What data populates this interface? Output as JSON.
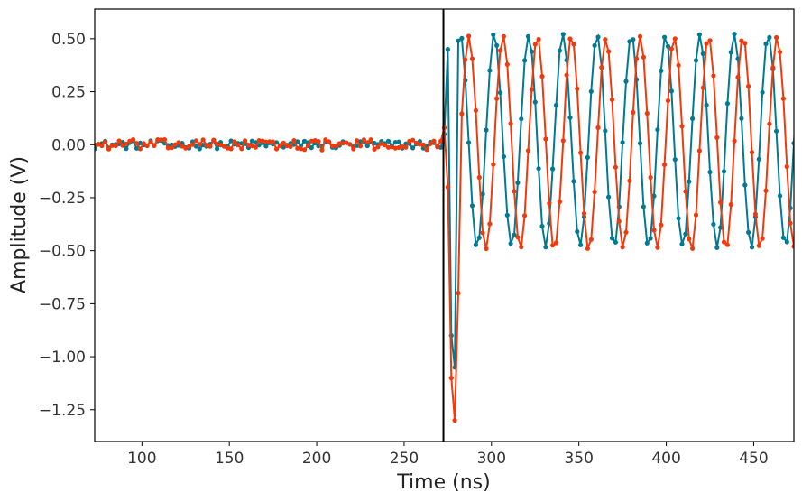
{
  "chart_data": {
    "type": "line",
    "title": "",
    "xlabel": "Time (ns)",
    "ylabel": "Amplitude (V)",
    "xlim": [
      73,
      473
    ],
    "ylim": [
      -1.4,
      0.64
    ],
    "xticks": [
      100,
      150,
      200,
      250,
      300,
      350,
      400,
      450
    ],
    "xtick_labels": [
      "100",
      "150",
      "200",
      "250",
      "300",
      "350",
      "400",
      "450"
    ],
    "yticks": [
      0.5,
      0.25,
      0.0,
      -0.25,
      -0.5,
      -0.75,
      -1.0,
      -1.25
    ],
    "ytick_labels": [
      "0.50",
      "0.25",
      "0.00",
      "−0.25",
      "−0.50",
      "−0.75",
      "−1.00",
      "−1.25"
    ],
    "grid": false,
    "legend": "none",
    "vertical_line": {
      "x": 272.5,
      "color": "#000000"
    },
    "sample_interval_ns": 2,
    "trigger_ns": 273,
    "series": [
      {
        "name": "teal channel",
        "color": "#007a92",
        "baseline": 0.0,
        "noise_amplitude": 0.02,
        "oscillation_amplitude": 0.5,
        "oscillation_offset": 0.02,
        "period_ns": 19.6,
        "phase_reference_ns": 282,
        "initial_dip": {
          "t": [
            273,
            275,
            277,
            279
          ],
          "values": [
            0.05,
            0.45,
            -0.9,
            -1.05
          ]
        }
      },
      {
        "name": "red channel",
        "color": "#f03a0c",
        "baseline": 0.0,
        "noise_amplitude": 0.025,
        "oscillation_amplitude": 0.5,
        "oscillation_offset": 0.01,
        "period_ns": 19.6,
        "phase_reference_ns": 287,
        "initial_dip": {
          "t": [
            273,
            275,
            277,
            279,
            281
          ],
          "values": [
            0.08,
            -0.2,
            -1.1,
            -1.3,
            -0.7
          ]
        }
      }
    ]
  }
}
